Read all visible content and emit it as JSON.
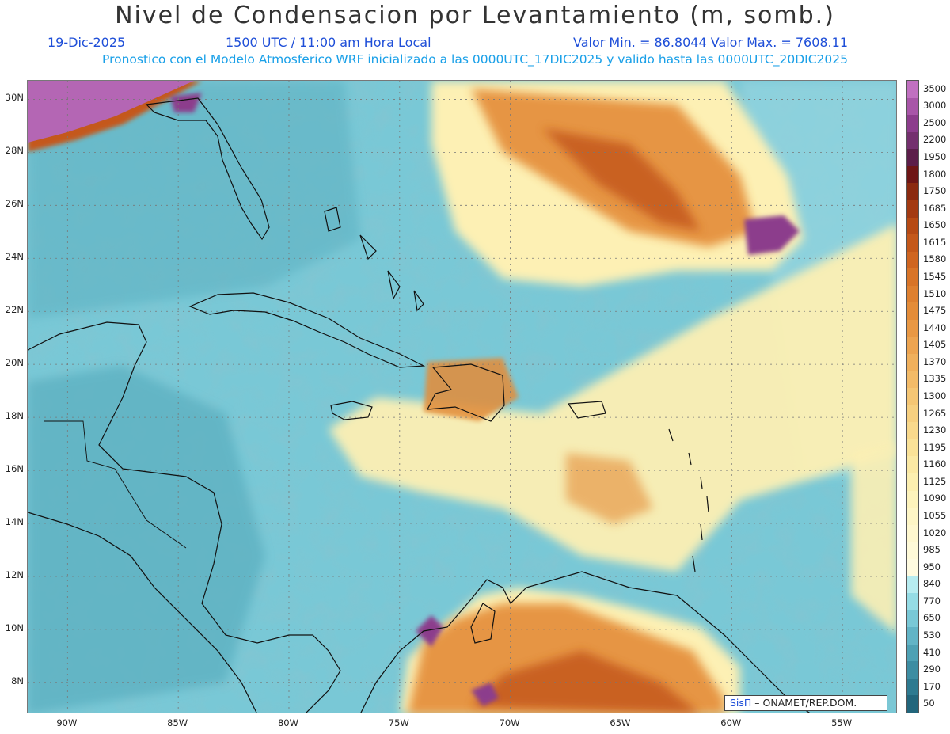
{
  "header": {
    "title": "Nivel de Condensacion por Levantamiento (m, somb.)",
    "date": "19-Dic-2025",
    "time": "1500 UTC / 11:00 am Hora Local",
    "minmax": "Valor Min. = 86.8044  Valor Max. = 7608.11",
    "forecast": "Pronostico con el Modelo Atmosferico WRF inicializado a las 0000UTC_17DIC2025 y valido hasta las  0000UTC_20DIC2025"
  },
  "axes": {
    "lat_labels": [
      "30N",
      "28N",
      "26N",
      "24N",
      "22N",
      "20N",
      "18N",
      "16N",
      "14N",
      "12N",
      "10N",
      "8N"
    ],
    "lat_values": [
      30,
      28,
      26,
      24,
      22,
      20,
      18,
      16,
      14,
      12,
      10,
      8
    ],
    "lon_labels": [
      "90W",
      "85W",
      "80W",
      "75W",
      "70W",
      "65W",
      "60W",
      "55W"
    ],
    "lon_values": [
      -90,
      -85,
      -80,
      -75,
      -70,
      -65,
      -60,
      -55
    ],
    "lat_range": [
      6.8,
      30.7
    ],
    "lon_range": [
      -91.8,
      -52.5
    ]
  },
  "legend": {
    "labels": [
      "3500",
      "3000",
      "2500",
      "2200",
      "1950",
      "1800",
      "1750",
      "1685",
      "1650",
      "1615",
      "1580",
      "1545",
      "1510",
      "1475",
      "1440",
      "1405",
      "1370",
      "1335",
      "1300",
      "1265",
      "1230",
      "1195",
      "1160",
      "1125",
      "1090",
      "1055",
      "1020",
      "985",
      "950",
      "840",
      "770",
      "650",
      "530",
      "410",
      "290",
      "170",
      "50"
    ],
    "colors": [
      "#c070c0",
      "#a856a8",
      "#8c3d8c",
      "#74306e",
      "#5c1e4a",
      "#6e1616",
      "#8b2a10",
      "#a33a12",
      "#b64a14",
      "#c4581a",
      "#cf6520",
      "#d87428",
      "#de8030",
      "#e48c38",
      "#e99844",
      "#eda450",
      "#f0b05c",
      "#f3bb68",
      "#f5c674",
      "#f7d080",
      "#f9d98c",
      "#fae298",
      "#fbe9a4",
      "#fcefb0",
      "#fdf3bc",
      "#fef6c6",
      "#fff8cf",
      "#fffad8",
      "#fffbe0",
      "#b7ecf0",
      "#95dce5",
      "#79c8d6",
      "#62b4c6",
      "#4ea1b4",
      "#3d8da2",
      "#2e7a90",
      "#22667c"
    ]
  },
  "credit": {
    "sis": "SisΠ",
    "org": " – ONAMET/REP.DOM."
  },
  "map_colors": {
    "ocean": "#79c8d6",
    "ocean_dark": "#5aaebf",
    "ocean_light": "#9ad8e2",
    "yellow": "#fdf0b4",
    "orange": "#e48c38",
    "dark_orange": "#c4581a",
    "purple": "#8c3d8c",
    "magenta": "#b466b4"
  }
}
